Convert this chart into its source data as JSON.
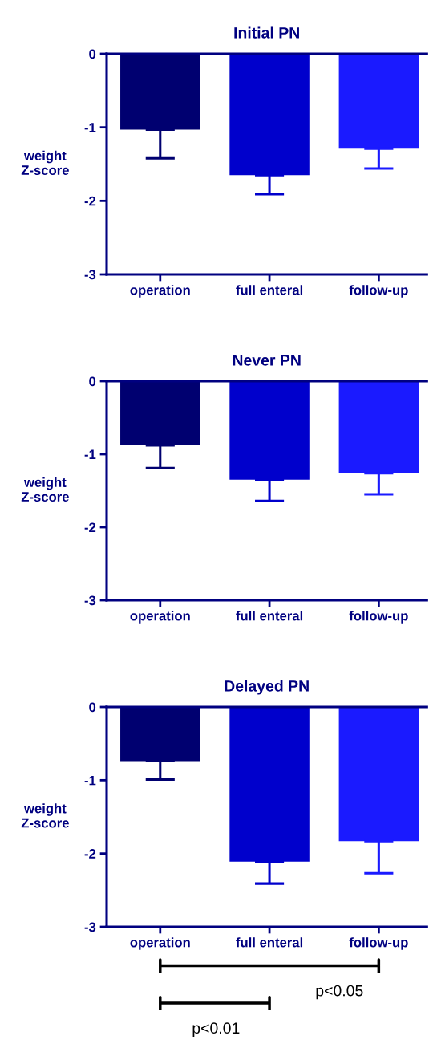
{
  "chart_data": [
    {
      "type": "bar",
      "title": "Initial PN",
      "ylabel": "weight\nZ-score",
      "categories": [
        "operation",
        "full enteral",
        "follow-up"
      ],
      "values": [
        -1.03,
        -1.65,
        -1.29
      ],
      "colors": [
        "#000070",
        "#0000cc",
        "#1a1aff"
      ],
      "errors": [
        [
          -1.42,
          -1.03
        ],
        [
          -1.91,
          -1.65
        ],
        [
          -1.56,
          -1.29
        ]
      ],
      "ylim": [
        -3,
        0
      ],
      "yticks": [
        0,
        -1,
        -2,
        -3
      ]
    },
    {
      "type": "bar",
      "title": "Never PN",
      "ylabel": "weight\nZ-score",
      "categories": [
        "operation",
        "full enteral",
        "follow-up"
      ],
      "values": [
        -0.88,
        -1.35,
        -1.26
      ],
      "colors": [
        "#000070",
        "#0000cc",
        "#1a1aff"
      ],
      "errors": [
        [
          -1.19,
          -0.88
        ],
        [
          -1.64,
          -1.35
        ],
        [
          -1.55,
          -1.26
        ]
      ],
      "ylim": [
        -3,
        0
      ],
      "yticks": [
        0,
        -1,
        -2,
        -3
      ]
    },
    {
      "type": "bar",
      "title": "Delayed PN",
      "ylabel": "weight\nZ-score",
      "categories": [
        "operation",
        "full enteral",
        "follow-up"
      ],
      "values": [
        -0.74,
        -2.11,
        -1.83
      ],
      "colors": [
        "#000070",
        "#0000cc",
        "#1a1aff"
      ],
      "errors": [
        [
          -0.99,
          -0.74
        ],
        [
          -2.41,
          -2.11
        ],
        [
          -2.27,
          -1.83
        ]
      ],
      "ylim": [
        -3,
        0
      ],
      "yticks": [
        0,
        -1,
        -2,
        -3
      ],
      "annotations": [
        "p<0.05",
        "p<0.01"
      ]
    }
  ]
}
